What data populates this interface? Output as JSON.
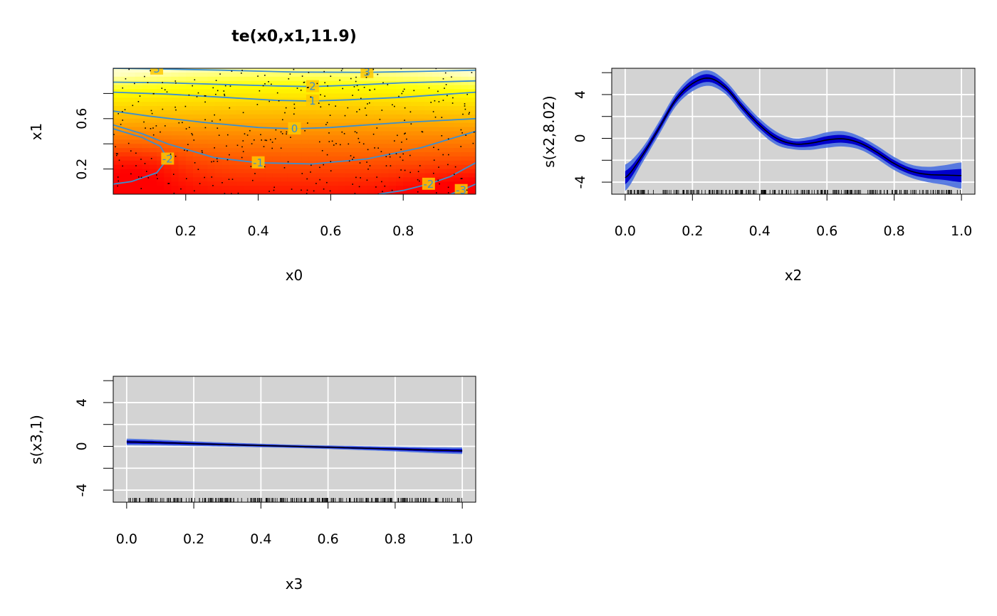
{
  "colors": {
    "panel_bg": "#d3d3d3",
    "grid": "#ffffff",
    "fit_line": "#000000",
    "inner_band": "#0000cc",
    "outer_band": "#4169e1",
    "contour": "#3a8fd0",
    "heat_low": "#ff0000",
    "heat_mid": "#ff8c00",
    "heat_high": "#ffff00",
    "heat_top": "#ffffcc"
  },
  "chart_data": [
    {
      "id": "te",
      "type": "heatmap",
      "title": "te(x0,x1,11.9)",
      "xlabel": "x0",
      "ylabel": "x1",
      "xlim": [
        0,
        1
      ],
      "ylim": [
        0,
        1
      ],
      "xticks": [
        "0.2",
        "0.4",
        "0.6",
        "0.8"
      ],
      "yticks": [
        "0.2",
        "0.6"
      ],
      "contours": [
        {
          "level": "3",
          "labels": [
            "3",
            "3"
          ],
          "points": [
            [
              0.0,
              1.0
            ],
            [
              0.12,
              0.995
            ],
            [
              0.3,
              0.985
            ],
            [
              0.5,
              0.97
            ],
            [
              0.7,
              0.968
            ],
            [
              0.85,
              0.975
            ],
            [
              1.0,
              0.985
            ]
          ]
        },
        {
          "level": "2",
          "labels": [
            "2"
          ],
          "points": [
            [
              0.0,
              0.89
            ],
            [
              0.15,
              0.885
            ],
            [
              0.3,
              0.872
            ],
            [
              0.45,
              0.86
            ],
            [
              0.55,
              0.855
            ],
            [
              0.65,
              0.865
            ],
            [
              0.8,
              0.885
            ],
            [
              1.0,
              0.9
            ]
          ]
        },
        {
          "level": "1",
          "labels": [
            "1"
          ],
          "points": [
            [
              0.0,
              0.81
            ],
            [
              0.15,
              0.795
            ],
            [
              0.3,
              0.77
            ],
            [
              0.45,
              0.745
            ],
            [
              0.55,
              0.74
            ],
            [
              0.65,
              0.75
            ],
            [
              0.8,
              0.77
            ],
            [
              1.0,
              0.81
            ]
          ]
        },
        {
          "level": "0",
          "labels": [
            "0"
          ],
          "points": [
            [
              0.0,
              0.66
            ],
            [
              0.1,
              0.62
            ],
            [
              0.25,
              0.57
            ],
            [
              0.4,
              0.53
            ],
            [
              0.5,
              0.52
            ],
            [
              0.6,
              0.53
            ],
            [
              0.8,
              0.57
            ],
            [
              1.0,
              0.6
            ]
          ]
        },
        {
          "level": "-1",
          "labels": [
            "-1"
          ],
          "points": [
            [
              0.0,
              0.55
            ],
            [
              0.08,
              0.48
            ],
            [
              0.15,
              0.4
            ],
            [
              0.28,
              0.29
            ],
            [
              0.4,
              0.25
            ],
            [
              0.55,
              0.24
            ],
            [
              0.7,
              0.28
            ],
            [
              0.85,
              0.37
            ],
            [
              1.0,
              0.5
            ]
          ]
        },
        {
          "level": "-2",
          "labels": [
            "-2"
          ],
          "points": [
            [
              0.0,
              0.52
            ],
            [
              0.08,
              0.45
            ],
            [
              0.13,
              0.38
            ],
            [
              0.15,
              0.28
            ],
            [
              0.12,
              0.17
            ],
            [
              0.05,
              0.1
            ],
            [
              0.0,
              0.08
            ]
          ]
        },
        {
          "level": "-2",
          "labels": [
            "-2"
          ],
          "points": [
            [
              0.73,
              0.0
            ],
            [
              0.8,
              0.03
            ],
            [
              0.87,
              0.08
            ],
            [
              0.93,
              0.14
            ],
            [
              1.0,
              0.25
            ]
          ]
        },
        {
          "level": "-3",
          "labels": [
            "-3"
          ],
          "points": [
            [
              0.93,
              0.0
            ],
            [
              0.96,
              0.03
            ],
            [
              1.0,
              0.08
            ]
          ]
        }
      ]
    },
    {
      "id": "s2",
      "type": "line",
      "xlabel": "x2",
      "ylabel": "s(x2,8.02)",
      "xlim": [
        -0.04,
        1.04
      ],
      "ylim": [
        -5.1,
        6.4
      ],
      "xticks": [
        "0.0",
        "0.2",
        "0.4",
        "0.6",
        "0.8",
        "1.0"
      ],
      "yticks": [
        "-4",
        "0",
        "4"
      ],
      "x": [
        0.0,
        0.05,
        0.1,
        0.15,
        0.2,
        0.25,
        0.3,
        0.35,
        0.4,
        0.45,
        0.5,
        0.55,
        0.6,
        0.65,
        0.7,
        0.75,
        0.8,
        0.85,
        0.9,
        0.95,
        1.0
      ],
      "fit": [
        -3.6,
        -1.6,
        0.9,
        3.5,
        5.0,
        5.5,
        4.6,
        2.8,
        1.2,
        0.0,
        -0.5,
        -0.45,
        -0.15,
        -0.05,
        -0.45,
        -1.3,
        -2.3,
        -3.0,
        -3.3,
        -3.35,
        -3.4
      ],
      "inner_se": [
        0.6,
        0.35,
        0.3,
        0.3,
        0.35,
        0.35,
        0.3,
        0.3,
        0.3,
        0.3,
        0.25,
        0.3,
        0.35,
        0.35,
        0.3,
        0.3,
        0.3,
        0.3,
        0.35,
        0.45,
        0.6
      ],
      "outer_se": [
        1.2,
        0.7,
        0.6,
        0.6,
        0.7,
        0.7,
        0.6,
        0.6,
        0.6,
        0.6,
        0.5,
        0.6,
        0.7,
        0.7,
        0.6,
        0.6,
        0.6,
        0.6,
        0.7,
        0.9,
        1.2
      ]
    },
    {
      "id": "s3",
      "type": "line",
      "xlabel": "x3",
      "ylabel": "s(x3,1)",
      "xlim": [
        -0.04,
        1.04
      ],
      "ylim": [
        -5.1,
        6.4
      ],
      "xticks": [
        "0.0",
        "0.2",
        "0.4",
        "0.6",
        "0.8",
        "1.0"
      ],
      "yticks": [
        "-4",
        "0",
        "4"
      ],
      "x": [
        0.0,
        0.25,
        0.5,
        0.75,
        1.0
      ],
      "fit": [
        0.4,
        0.2,
        0.0,
        -0.2,
        -0.4
      ],
      "inner_se": [
        0.15,
        0.1,
        0.08,
        0.1,
        0.15
      ],
      "outer_se": [
        0.3,
        0.2,
        0.15,
        0.2,
        0.3
      ]
    }
  ]
}
